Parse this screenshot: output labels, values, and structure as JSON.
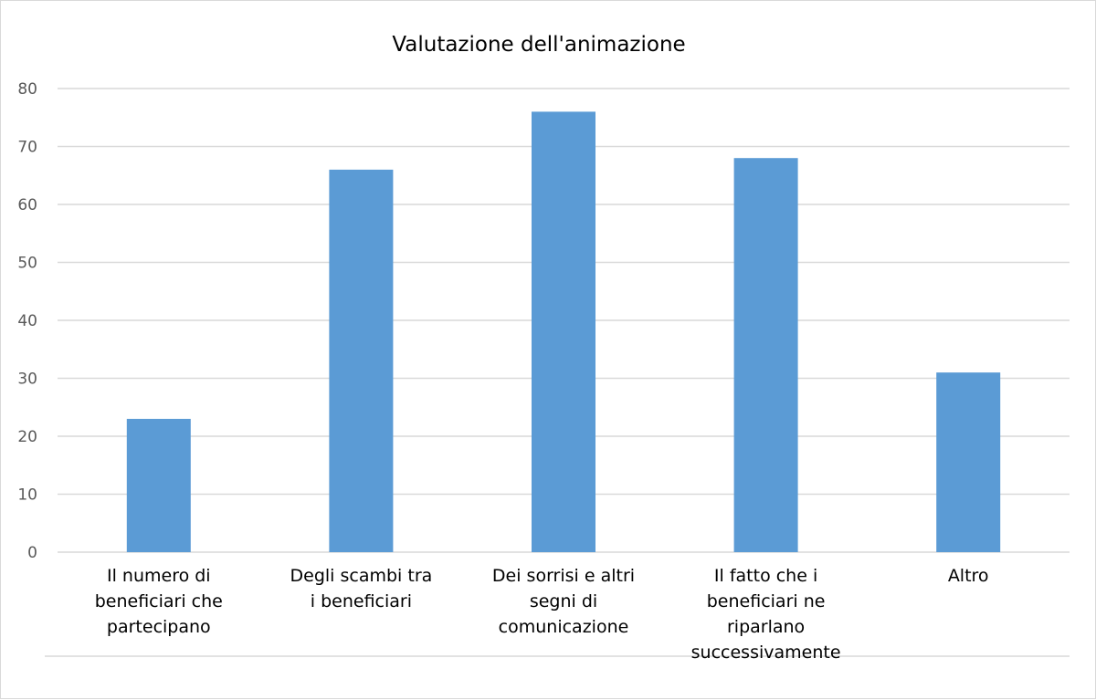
{
  "chart_data": {
    "type": "bar",
    "title": "Valutazione dell'animazione",
    "xlabel": "",
    "ylabel": "",
    "categories": [
      [
        "Il numero di",
        "beneficiari che",
        "partecipano"
      ],
      [
        "Degli scambi tra",
        "i beneficiari"
      ],
      [
        "Dei sorrisi e altri",
        "segni di",
        "comunicazione"
      ],
      [
        "Il fatto che i",
        "beneficiari ne",
        "riparlano",
        "successivamente"
      ],
      [
        "Altro"
      ]
    ],
    "values": [
      23,
      66,
      76,
      68,
      31
    ],
    "ylim": [
      0,
      80
    ],
    "yticks": [
      0,
      10,
      20,
      30,
      40,
      50,
      60,
      70,
      80
    ],
    "grid": true,
    "legend": "none",
    "bar_color": "#5b9bd5"
  }
}
